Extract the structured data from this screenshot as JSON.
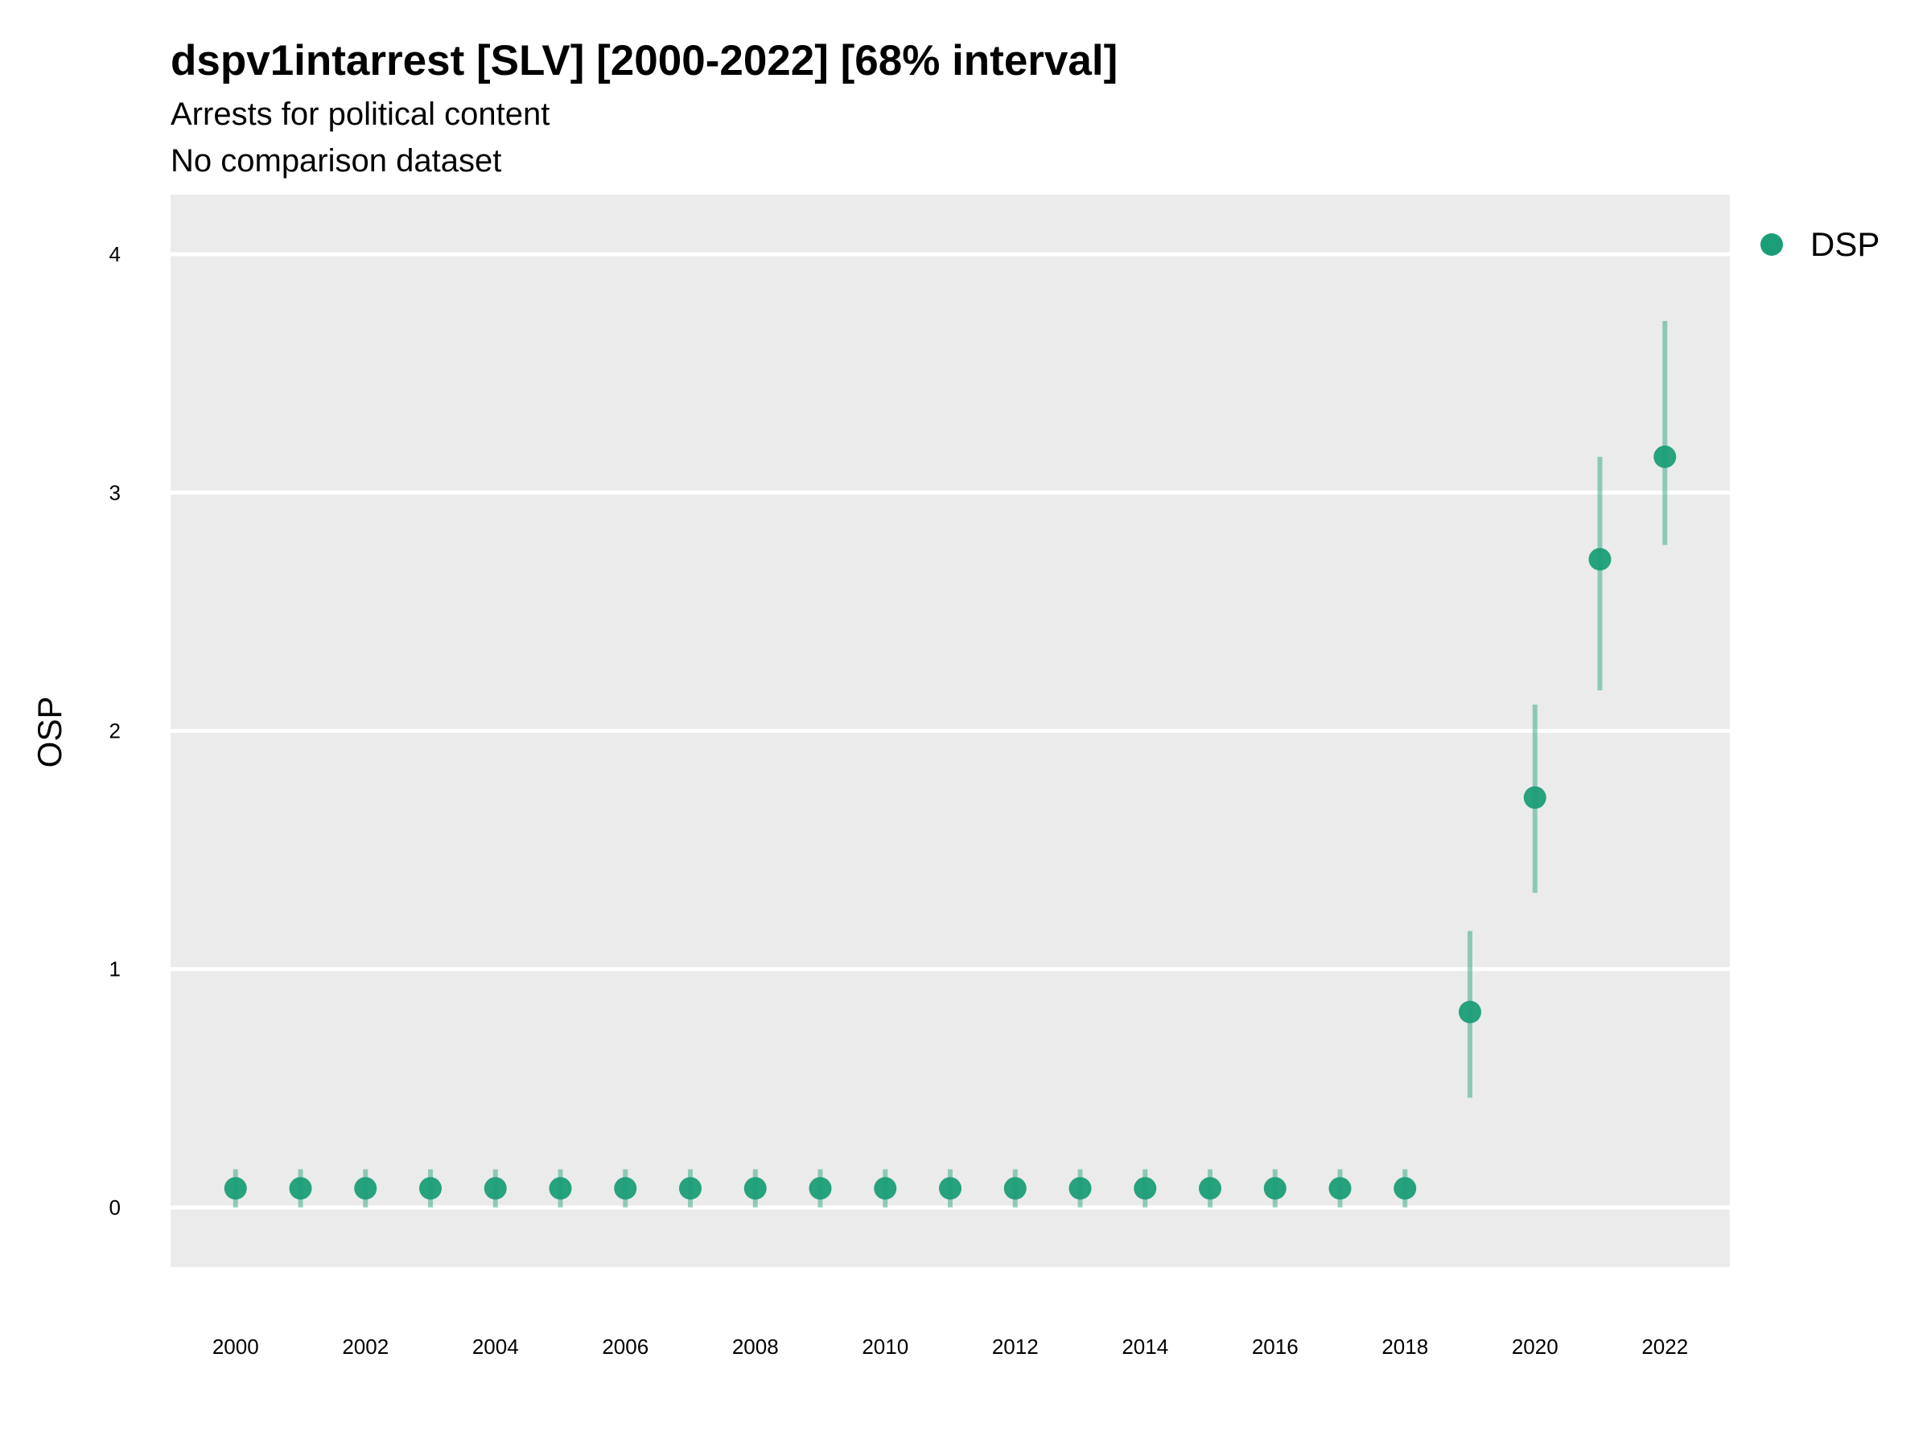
{
  "chart_data": {
    "type": "scatter",
    "title": "dspv1intarrest [SLV] [2000-2022] [68% interval]",
    "subtitle": "Arrests for political content",
    "subtitle2": "No comparison dataset",
    "xlabel": "",
    "ylabel": "OSP",
    "ylim": [
      -0.25,
      4.25
    ],
    "xlim": [
      1999,
      2023
    ],
    "grid": true,
    "legend_position": "right",
    "y_ticks": [
      0,
      1,
      2,
      3,
      4
    ],
    "x_ticks": [
      2000,
      2002,
      2004,
      2006,
      2008,
      2010,
      2012,
      2014,
      2016,
      2018,
      2020,
      2022
    ],
    "series": [
      {
        "name": "DSP",
        "color": "#1b9e77",
        "x": [
          2000,
          2001,
          2002,
          2003,
          2004,
          2005,
          2006,
          2007,
          2008,
          2009,
          2010,
          2011,
          2012,
          2013,
          2014,
          2015,
          2016,
          2017,
          2018,
          2019,
          2020,
          2021,
          2022
        ],
        "y": [
          0.08,
          0.08,
          0.08,
          0.08,
          0.08,
          0.08,
          0.08,
          0.08,
          0.08,
          0.08,
          0.08,
          0.08,
          0.08,
          0.08,
          0.08,
          0.08,
          0.08,
          0.08,
          0.08,
          0.82,
          1.72,
          2.72,
          3.15
        ],
        "lower": [
          0.0,
          0.0,
          0.0,
          0.0,
          0.0,
          0.0,
          0.0,
          0.0,
          0.0,
          0.0,
          0.0,
          0.0,
          0.0,
          0.0,
          0.0,
          0.0,
          0.0,
          0.0,
          0.0,
          0.46,
          1.32,
          2.17,
          2.78
        ],
        "upper": [
          0.16,
          0.16,
          0.16,
          0.16,
          0.16,
          0.16,
          0.16,
          0.16,
          0.16,
          0.16,
          0.16,
          0.16,
          0.16,
          0.16,
          0.16,
          0.16,
          0.16,
          0.16,
          0.16,
          1.16,
          2.11,
          3.15,
          3.72
        ]
      }
    ]
  }
}
